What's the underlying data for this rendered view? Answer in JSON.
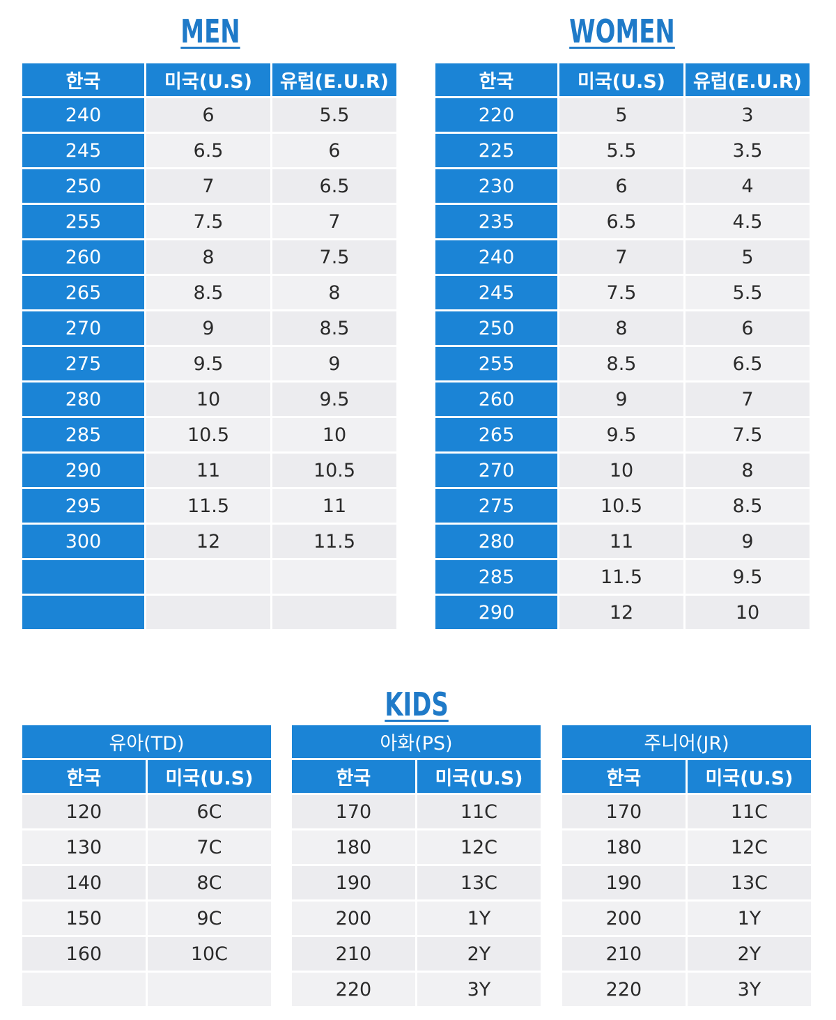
{
  "men": {
    "title": "MEN",
    "headers": [
      "한국",
      "미국(U.S)",
      "유럽(E.U.R)"
    ],
    "rows": [
      [
        "240",
        "6",
        "5.5"
      ],
      [
        "245",
        "6.5",
        "6"
      ],
      [
        "250",
        "7",
        "6.5"
      ],
      [
        "255",
        "7.5",
        "7"
      ],
      [
        "260",
        "8",
        "7.5"
      ],
      [
        "265",
        "8.5",
        "8"
      ],
      [
        "270",
        "9",
        "8.5"
      ],
      [
        "275",
        "9.5",
        "9"
      ],
      [
        "280",
        "10",
        "9.5"
      ],
      [
        "285",
        "10.5",
        "10"
      ],
      [
        "290",
        "11",
        "10.5"
      ],
      [
        "295",
        "11.5",
        "11"
      ],
      [
        "300",
        "12",
        "11.5"
      ],
      [
        "",
        "",
        ""
      ],
      [
        "",
        "",
        ""
      ]
    ]
  },
  "women": {
    "title": "WOMEN",
    "headers": [
      "한국",
      "미국(U.S)",
      "유럽(E.U.R)"
    ],
    "rows": [
      [
        "220",
        "5",
        "3"
      ],
      [
        "225",
        "5.5",
        "3.5"
      ],
      [
        "230",
        "6",
        "4"
      ],
      [
        "235",
        "6.5",
        "4.5"
      ],
      [
        "240",
        "7",
        "5"
      ],
      [
        "245",
        "7.5",
        "5.5"
      ],
      [
        "250",
        "8",
        "6"
      ],
      [
        "255",
        "8.5",
        "6.5"
      ],
      [
        "260",
        "9",
        "7"
      ],
      [
        "265",
        "9.5",
        "7.5"
      ],
      [
        "270",
        "10",
        "8"
      ],
      [
        "275",
        "10.5",
        "8.5"
      ],
      [
        "280",
        "11",
        "9"
      ],
      [
        "285",
        "11.5",
        "9.5"
      ],
      [
        "290",
        "12",
        "10"
      ]
    ]
  },
  "kids": {
    "title": "KIDS",
    "groups": [
      {
        "name": "유아(TD)",
        "headers": [
          "한국",
          "미국(U.S)"
        ],
        "rows": [
          [
            "120",
            "6C"
          ],
          [
            "130",
            "7C"
          ],
          [
            "140",
            "8C"
          ],
          [
            "150",
            "9C"
          ],
          [
            "160",
            "10C"
          ],
          [
            "",
            ""
          ]
        ]
      },
      {
        "name": "아화(PS)",
        "headers": [
          "한국",
          "미국(U.S)"
        ],
        "rows": [
          [
            "170",
            "11C"
          ],
          [
            "180",
            "12C"
          ],
          [
            "190",
            "13C"
          ],
          [
            "200",
            "1Y"
          ],
          [
            "210",
            "2Y"
          ],
          [
            "220",
            "3Y"
          ]
        ]
      },
      {
        "name": "주니어(JR)",
        "headers": [
          "한국",
          "미국(U.S)"
        ],
        "rows": [
          [
            "170",
            "11C"
          ],
          [
            "180",
            "12C"
          ],
          [
            "190",
            "13C"
          ],
          [
            "200",
            "1Y"
          ],
          [
            "210",
            "2Y"
          ],
          [
            "220",
            "3Y"
          ]
        ]
      }
    ]
  },
  "colors": {
    "accent": "#1b84d6",
    "title": "#1f7ac8",
    "cell": "#ececef"
  }
}
